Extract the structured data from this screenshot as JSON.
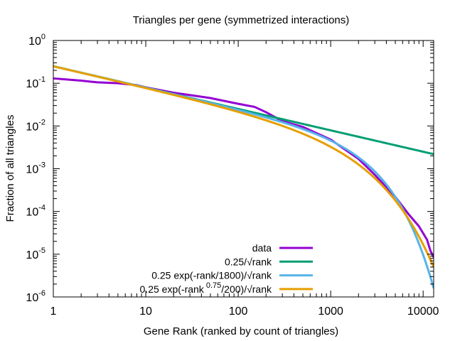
{
  "chart_data": {
    "type": "line",
    "title": "Triangles per gene (symmetrized interactions)",
    "xlabel": "Gene Rank (ranked by count of triangles)",
    "ylabel": "Fraction of all triangles",
    "xscale": "log",
    "yscale": "log",
    "xlim": [
      1,
      13000
    ],
    "ylim": [
      1e-06,
      1
    ],
    "grid": false,
    "legend_position": "bottom-right",
    "x_ticks": [
      {
        "value": 1,
        "label": "1"
      },
      {
        "value": 10,
        "label": "10"
      },
      {
        "value": 100,
        "label": "100"
      },
      {
        "value": 1000,
        "label": "1000"
      },
      {
        "value": 10000,
        "label": "10000"
      }
    ],
    "y_ticks": [
      {
        "value": 1,
        "base": "10",
        "exp": "0"
      },
      {
        "value": 0.1,
        "base": "10",
        "exp": "-1"
      },
      {
        "value": 0.01,
        "base": "10",
        "exp": "-2"
      },
      {
        "value": 0.001,
        "base": "10",
        "exp": "-3"
      },
      {
        "value": 0.0001,
        "base": "10",
        "exp": "-4"
      },
      {
        "value": 1e-05,
        "base": "10",
        "exp": "-5"
      },
      {
        "value": 1e-06,
        "base": "10",
        "exp": "-6"
      }
    ],
    "series": [
      {
        "name": "data",
        "name_parts": {
          "pre": "data",
          "sup": "",
          "post": ""
        },
        "color": "#9400d3",
        "x": [
          1,
          2,
          3,
          5,
          8,
          10,
          20,
          50,
          100,
          150,
          200,
          300,
          500,
          1000,
          2000,
          3000,
          5000,
          7000,
          9000,
          11000,
          12000,
          13000
        ],
        "y": [
          0.13,
          0.115,
          0.105,
          0.1,
          0.09,
          0.08,
          0.06,
          0.045,
          0.033,
          0.028,
          0.021,
          0.013,
          0.0095,
          0.0048,
          0.0017,
          0.00072,
          0.00022,
          8.5e-05,
          4.5e-05,
          2.2e-05,
          1.2e-05,
          8.5e-06
        ]
      },
      {
        "name": "0.25/√rank",
        "name_parts": {
          "pre": "0.25/√rank",
          "sup": "",
          "post": ""
        },
        "color": "#009e73",
        "formula": "0.25/sqrt(rank)"
      },
      {
        "name": "0.25 exp(-rank/1800)/√rank",
        "name_parts": {
          "pre": "0.25 exp(-rank/1800)/√rank",
          "sup": "",
          "post": ""
        },
        "color": "#56b4e9",
        "formula": "0.25*exp(-rank/1800)/sqrt(rank)"
      },
      {
        "name": "0.25 exp(-rank^0.75/200)/√rank",
        "name_parts": {
          "pre": "0.25 exp(-rank",
          "sup": "0.75",
          "post": "/200)/√rank"
        },
        "color": "#e69f00",
        "formula": "0.25*exp(-rank^0.75/200)/sqrt(rank)"
      }
    ]
  }
}
